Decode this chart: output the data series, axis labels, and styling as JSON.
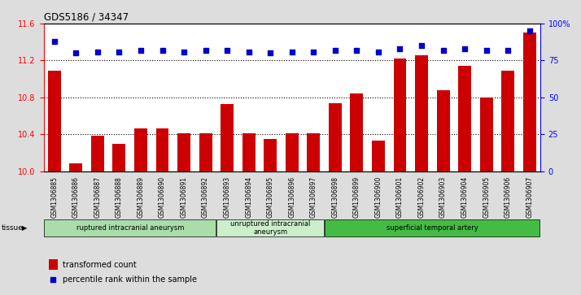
{
  "title": "GDS5186 / 34347",
  "categories": [
    "GSM1306885",
    "GSM1306886",
    "GSM1306887",
    "GSM1306888",
    "GSM1306889",
    "GSM1306890",
    "GSM1306891",
    "GSM1306892",
    "GSM1306893",
    "GSM1306894",
    "GSM1306895",
    "GSM1306896",
    "GSM1306897",
    "GSM1306898",
    "GSM1306899",
    "GSM1306900",
    "GSM1306901",
    "GSM1306902",
    "GSM1306903",
    "GSM1306904",
    "GSM1306905",
    "GSM1306906",
    "GSM1306907"
  ],
  "bar_values": [
    11.09,
    10.08,
    10.38,
    10.3,
    10.46,
    10.46,
    10.41,
    10.41,
    10.73,
    10.41,
    10.35,
    10.41,
    10.41,
    10.74,
    10.84,
    10.33,
    11.22,
    11.26,
    10.88,
    11.14,
    10.8,
    11.09,
    11.5
  ],
  "percentile_values": [
    88,
    80,
    81,
    81,
    82,
    82,
    81,
    82,
    82,
    81,
    80,
    81,
    81,
    82,
    82,
    81,
    83,
    85,
    82,
    83,
    82,
    82,
    95
  ],
  "bar_color": "#cc0000",
  "percentile_color": "#0000cc",
  "ylim_left": [
    10.0,
    11.6
  ],
  "ylim_right": [
    0,
    100
  ],
  "yticks_left": [
    10.0,
    10.4,
    10.8,
    11.2,
    11.6
  ],
  "yticks_right": [
    0,
    25,
    50,
    75,
    100
  ],
  "ytick_labels_right": [
    "0",
    "25",
    "50",
    "75",
    "100%"
  ],
  "grid_values": [
    10.4,
    10.8,
    11.2
  ],
  "background_color": "#dddddd",
  "plot_bg_color": "#ffffff",
  "tissue_groups": [
    {
      "label": "ruptured intracranial aneurysm",
      "start": 0,
      "end": 8,
      "color": "#aaddaa"
    },
    {
      "label": "unruptured intracranial\naneurysm",
      "start": 8,
      "end": 13,
      "color": "#cceecc"
    },
    {
      "label": "superficial temporal artery",
      "start": 13,
      "end": 23,
      "color": "#44bb44"
    }
  ],
  "tissue_label": "tissue",
  "legend_bar_label": "transformed count",
  "legend_dot_label": "percentile rank within the sample"
}
